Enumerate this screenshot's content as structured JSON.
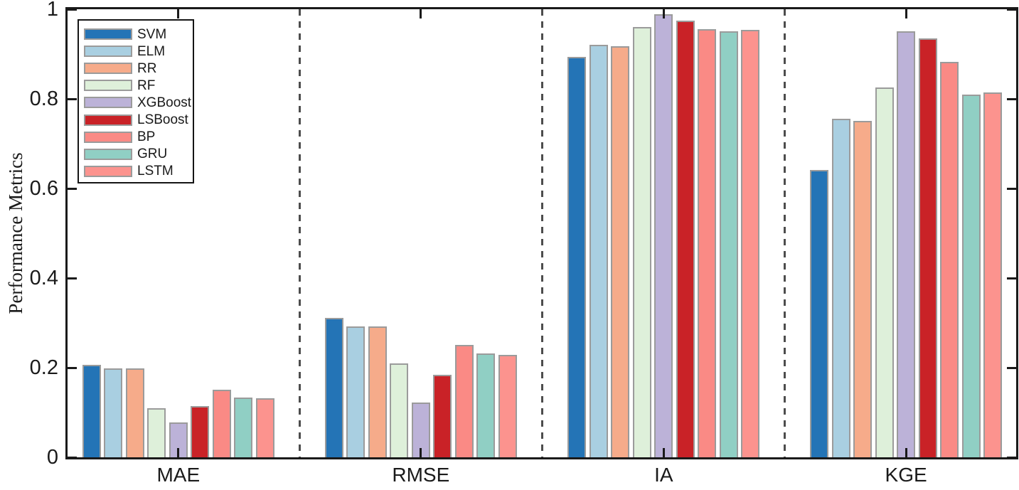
{
  "chart_data": {
    "type": "bar",
    "title": "",
    "xlabel": "",
    "ylabel": "Performance Metrics",
    "ylim": [
      0,
      1
    ],
    "ytick_labels": [
      "0",
      "0.2",
      "0.4",
      "0.6",
      "0.8",
      "1"
    ],
    "ytick_values": [
      0,
      0.2,
      0.4,
      0.6,
      0.8,
      1
    ],
    "categories": [
      "MAE",
      "RMSE",
      "IA",
      "KGE"
    ],
    "grid": false,
    "legend_position": "top-left",
    "group_separator_style": "dashed",
    "series": [
      {
        "name": "SVM",
        "color": "#2474b6",
        "values": [
          0.207,
          0.311,
          0.893,
          0.641
        ]
      },
      {
        "name": "ELM",
        "color": "#a9cfe1",
        "values": [
          0.199,
          0.292,
          0.92,
          0.756
        ]
      },
      {
        "name": "RR",
        "color": "#f6ab8a",
        "values": [
          0.199,
          0.292,
          0.917,
          0.75
        ]
      },
      {
        "name": "RF",
        "color": "#def0da",
        "values": [
          0.109,
          0.21,
          0.961,
          0.826
        ]
      },
      {
        "name": "XGBoost",
        "color": "#bcb2d8",
        "values": [
          0.078,
          0.122,
          0.989,
          0.95
        ]
      },
      {
        "name": "LSBoost",
        "color": "#c92227",
        "values": [
          0.115,
          0.184,
          0.975,
          0.935
        ]
      },
      {
        "name": "BP",
        "color": "#fa8a85",
        "values": [
          0.15,
          0.25,
          0.956,
          0.883
        ]
      },
      {
        "name": "GRU",
        "color": "#90cfc4",
        "values": [
          0.134,
          0.231,
          0.951,
          0.81
        ]
      },
      {
        "name": "LSTM",
        "color": "#fc938e",
        "values": [
          0.131,
          0.228,
          0.954,
          0.814
        ]
      }
    ],
    "styles": {
      "axis_color": "#1a1a1a",
      "bar_edge_color": "#9b9b9b",
      "separator_color": "#4d4d4d",
      "background": "#ffffff"
    }
  }
}
